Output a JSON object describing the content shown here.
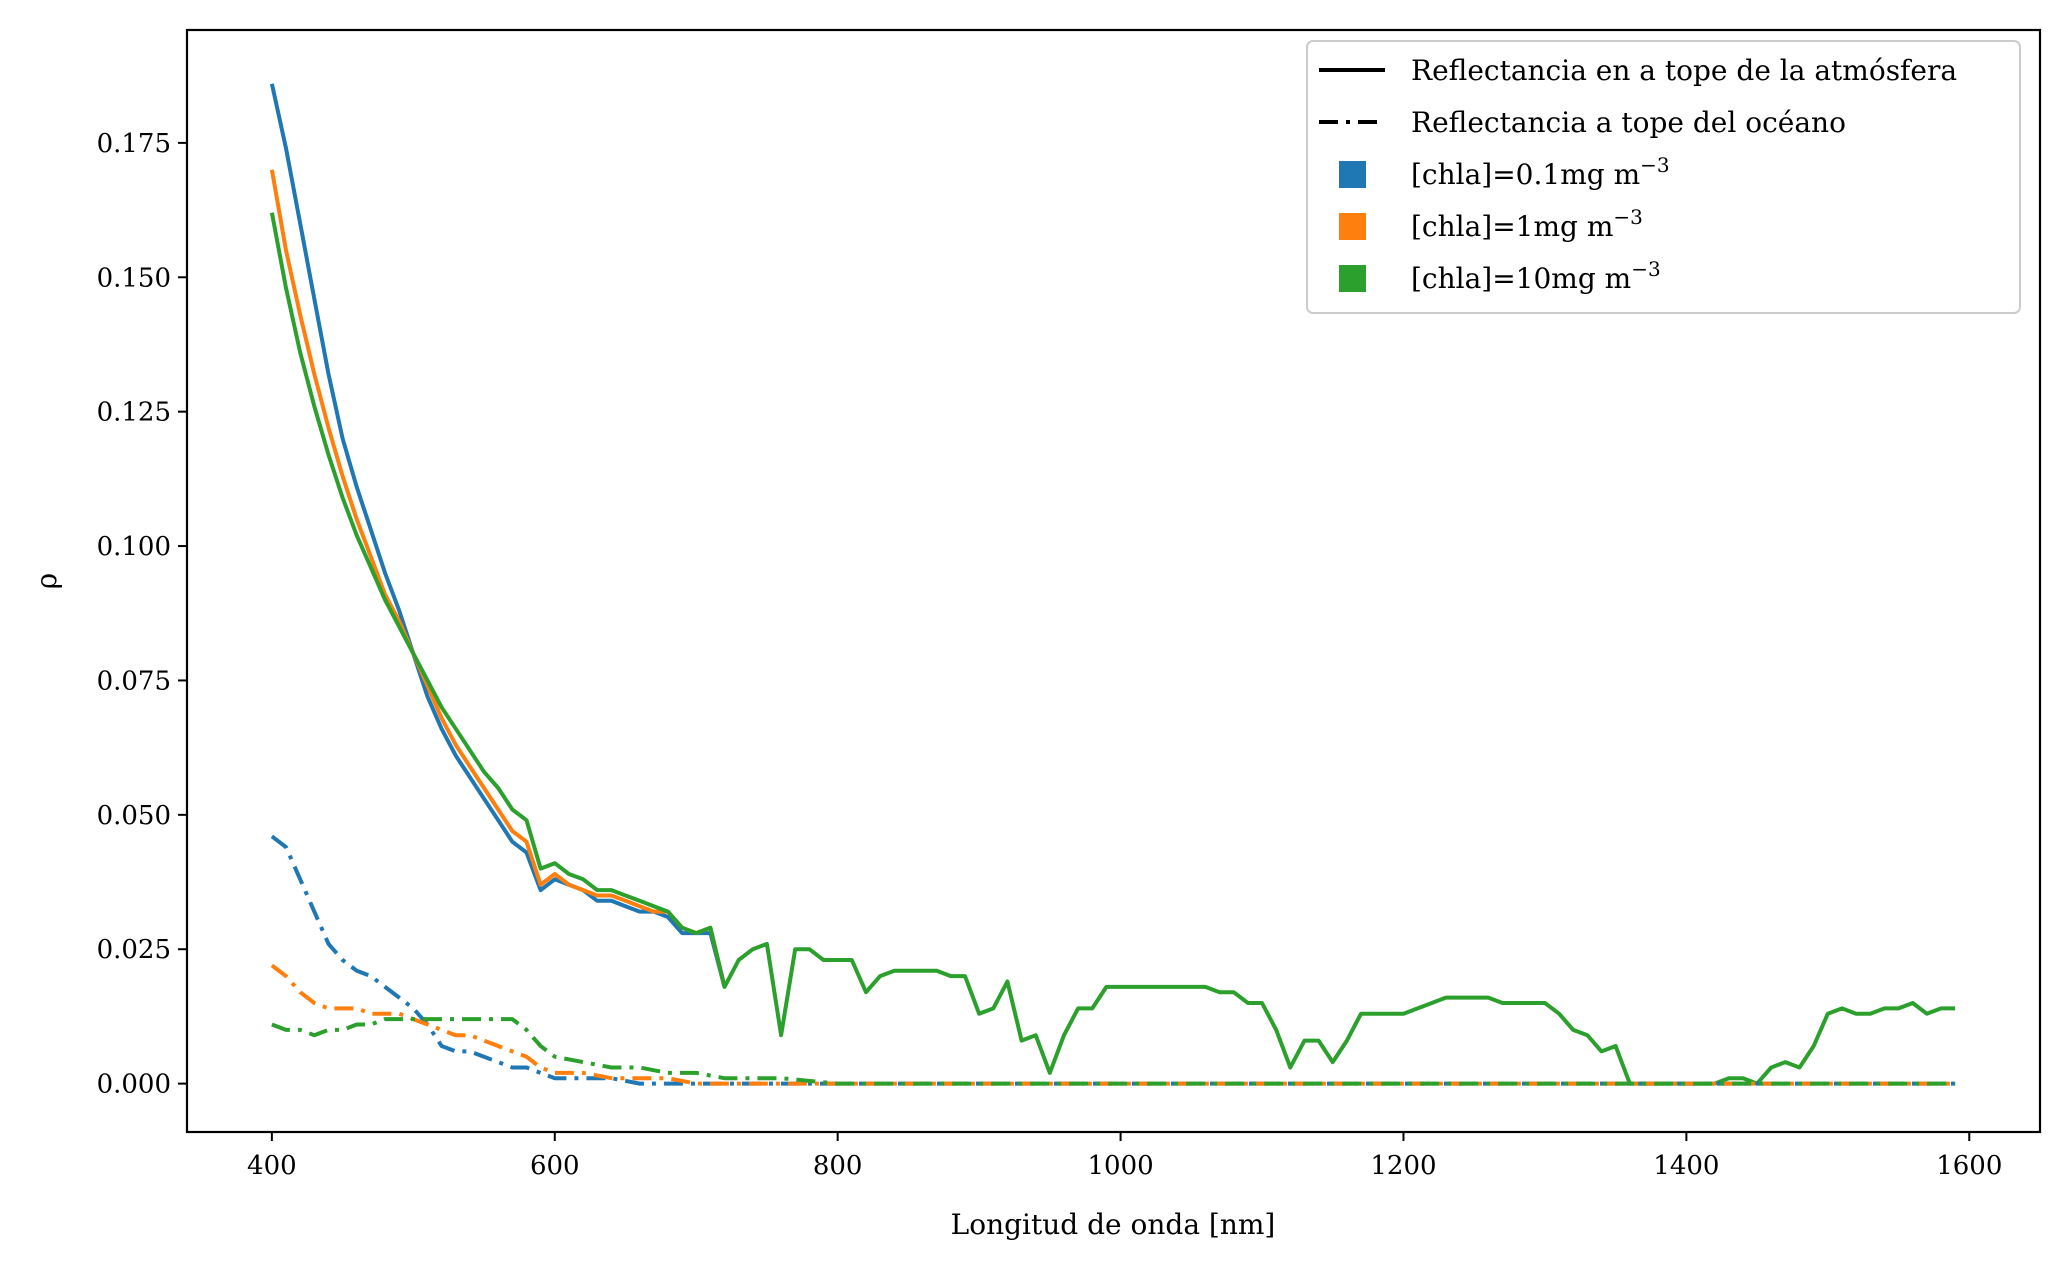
{
  "chart_data": {
    "type": "line",
    "xlabel": "Longitud de onda [nm]",
    "ylabel": "ρ",
    "xlim": [
      340,
      1650
    ],
    "ylim": [
      -0.009,
      0.196
    ],
    "xticks": [
      400,
      600,
      800,
      1000,
      1200,
      1400,
      1600
    ],
    "xtick_labels": [
      "400",
      "600",
      "800",
      "1000",
      "1200",
      "1400",
      "1600"
    ],
    "yticks": [
      0.0,
      0.025,
      0.05,
      0.075,
      0.1,
      0.125,
      0.15,
      0.175
    ],
    "ytick_labels": [
      "0.000",
      "0.025",
      "0.050",
      "0.075",
      "0.100",
      "0.125",
      "0.150",
      "0.175"
    ],
    "grid": false,
    "legend_position": "top-right",
    "legend": {
      "linestyles": [
        {
          "style": "solid",
          "label": "Reflectancia en a tope de la atmósfera"
        },
        {
          "style": "dashdot",
          "label": "Reflectancia a tope del océano"
        }
      ],
      "colors": [
        {
          "color": "#1f77b4",
          "label": "[chla]=0.1mg m",
          "sup": "−3"
        },
        {
          "color": "#ff7f0e",
          "label": "[chla]=1mg m",
          "sup": "−3"
        },
        {
          "color": "#2ca02c",
          "label": "[chla]=10mg m",
          "sup": "−3"
        }
      ]
    },
    "series": [
      {
        "color": "#1f77b4",
        "style": "solid",
        "x": [
          400,
          410,
          420,
          430,
          440,
          450,
          460,
          470,
          480,
          490,
          500,
          510,
          520,
          530,
          540,
          550,
          560,
          570,
          580,
          590,
          600,
          610,
          620,
          630,
          640,
          650,
          660,
          670,
          680,
          690,
          700,
          710,
          720
        ],
        "y": [
          0.186,
          0.174,
          0.16,
          0.146,
          0.132,
          0.12,
          0.111,
          0.103,
          0.095,
          0.088,
          0.08,
          0.072,
          0.066,
          0.061,
          0.057,
          0.053,
          0.049,
          0.045,
          0.043,
          0.036,
          0.038,
          0.037,
          0.036,
          0.034,
          0.034,
          0.033,
          0.032,
          0.032,
          0.031,
          0.028,
          0.028,
          0.028,
          0.018
        ]
      },
      {
        "color": "#ff7f0e",
        "style": "solid",
        "x": [
          400,
          410,
          420,
          430,
          440,
          450,
          460,
          470,
          480,
          490,
          500,
          510,
          520,
          530,
          540,
          550,
          560,
          570,
          580,
          590,
          600,
          610,
          620,
          630,
          640,
          650,
          660,
          670,
          680,
          690,
          700,
          710,
          720
        ],
        "y": [
          0.17,
          0.155,
          0.143,
          0.132,
          0.122,
          0.113,
          0.105,
          0.098,
          0.091,
          0.086,
          0.08,
          0.074,
          0.068,
          0.063,
          0.059,
          0.055,
          0.051,
          0.047,
          0.045,
          0.037,
          0.039,
          0.037,
          0.036,
          0.035,
          0.035,
          0.034,
          0.033,
          0.032,
          0.032,
          0.029,
          0.028,
          0.029,
          0.018
        ]
      },
      {
        "color": "#2ca02c",
        "style": "solid",
        "x": [
          400,
          410,
          420,
          430,
          440,
          450,
          460,
          470,
          480,
          490,
          500,
          510,
          520,
          530,
          540,
          550,
          560,
          570,
          580,
          590,
          600,
          610,
          620,
          630,
          640,
          650,
          660,
          670,
          680,
          690,
          700,
          710,
          720,
          730,
          740,
          750,
          760,
          770,
          780,
          790,
          800,
          810,
          820,
          830,
          840,
          850,
          860,
          870,
          880,
          890,
          900,
          910,
          920,
          930,
          940,
          950,
          960,
          970,
          980,
          990,
          1000,
          1010,
          1020,
          1030,
          1040,
          1050,
          1060,
          1070,
          1080,
          1090,
          1100,
          1110,
          1120,
          1130,
          1140,
          1150,
          1160,
          1170,
          1180,
          1190,
          1200,
          1210,
          1220,
          1230,
          1240,
          1250,
          1260,
          1270,
          1280,
          1290,
          1300,
          1310,
          1320,
          1330,
          1340,
          1350,
          1360,
          1370,
          1380,
          1390,
          1400,
          1410,
          1420,
          1430,
          1440,
          1450,
          1460,
          1470,
          1480,
          1490,
          1500,
          1510,
          1520,
          1530,
          1540,
          1550,
          1560,
          1570,
          1580,
          1590
        ],
        "y": [
          0.162,
          0.148,
          0.136,
          0.126,
          0.117,
          0.109,
          0.102,
          0.096,
          0.09,
          0.085,
          0.08,
          0.075,
          0.07,
          0.066,
          0.062,
          0.058,
          0.055,
          0.051,
          0.049,
          0.04,
          0.041,
          0.039,
          0.038,
          0.036,
          0.036,
          0.035,
          0.034,
          0.033,
          0.032,
          0.029,
          0.028,
          0.029,
          0.018,
          0.023,
          0.025,
          0.026,
          0.009,
          0.025,
          0.025,
          0.023,
          0.023,
          0.023,
          0.017,
          0.02,
          0.021,
          0.021,
          0.021,
          0.021,
          0.02,
          0.02,
          0.013,
          0.014,
          0.019,
          0.008,
          0.009,
          0.002,
          0.009,
          0.014,
          0.014,
          0.018,
          0.018,
          0.018,
          0.018,
          0.018,
          0.018,
          0.018,
          0.018,
          0.017,
          0.017,
          0.015,
          0.015,
          0.01,
          0.003,
          0.008,
          0.008,
          0.004,
          0.008,
          0.013,
          0.013,
          0.013,
          0.013,
          0.014,
          0.015,
          0.016,
          0.016,
          0.016,
          0.016,
          0.015,
          0.015,
          0.015,
          0.015,
          0.013,
          0.01,
          0.009,
          0.006,
          0.007,
          0.0,
          0.0,
          0.0,
          0.0,
          0.0,
          0.0,
          0.0,
          0.001,
          0.001,
          0.0,
          0.003,
          0.004,
          0.003,
          0.007,
          0.013,
          0.014,
          0.013,
          0.013,
          0.014,
          0.014,
          0.015,
          0.013,
          0.014,
          0.014
        ]
      },
      {
        "color": "#1f77b4",
        "style": "dashdot",
        "x": [
          400,
          410,
          420,
          430,
          440,
          450,
          460,
          470,
          480,
          490,
          500,
          510,
          520,
          530,
          540,
          550,
          560,
          570,
          580,
          590,
          600,
          620,
          640,
          660,
          680,
          700,
          720,
          740,
          760,
          800,
          900,
          1000,
          1100,
          1200,
          1300,
          1400,
          1500,
          1590
        ],
        "y": [
          0.046,
          0.044,
          0.038,
          0.032,
          0.026,
          0.023,
          0.021,
          0.02,
          0.018,
          0.016,
          0.014,
          0.011,
          0.007,
          0.006,
          0.006,
          0.005,
          0.004,
          0.003,
          0.003,
          0.002,
          0.001,
          0.001,
          0.001,
          0.0,
          0.0,
          0.0,
          0.0,
          0.0,
          0.0,
          0.0,
          0.0,
          0.0,
          0.0,
          0.0,
          0.0,
          0.0,
          0.0,
          0.0
        ]
      },
      {
        "color": "#ff7f0e",
        "style": "dashdot",
        "x": [
          400,
          410,
          420,
          430,
          440,
          450,
          460,
          470,
          480,
          490,
          500,
          510,
          520,
          530,
          540,
          550,
          560,
          570,
          580,
          590,
          600,
          620,
          640,
          660,
          680,
          700,
          720,
          740,
          760,
          800,
          900,
          1000,
          1100,
          1200,
          1300,
          1400,
          1500,
          1590
        ],
        "y": [
          0.022,
          0.02,
          0.017,
          0.015,
          0.014,
          0.014,
          0.014,
          0.013,
          0.013,
          0.013,
          0.012,
          0.011,
          0.01,
          0.009,
          0.009,
          0.008,
          0.007,
          0.006,
          0.005,
          0.003,
          0.002,
          0.002,
          0.001,
          0.001,
          0.001,
          0.0,
          0.0,
          0.0,
          0.0,
          0.0,
          0.0,
          0.0,
          0.0,
          0.0,
          0.0,
          0.0,
          0.0,
          0.0
        ]
      },
      {
        "color": "#2ca02c",
        "style": "dashdot",
        "x": [
          400,
          410,
          420,
          430,
          440,
          450,
          460,
          470,
          480,
          490,
          500,
          510,
          520,
          530,
          540,
          550,
          560,
          570,
          580,
          590,
          600,
          620,
          640,
          660,
          680,
          700,
          720,
          740,
          760,
          800,
          900,
          1000,
          1100,
          1200,
          1300,
          1400,
          1500,
          1590
        ],
        "y": [
          0.011,
          0.01,
          0.01,
          0.009,
          0.01,
          0.01,
          0.011,
          0.011,
          0.012,
          0.012,
          0.012,
          0.012,
          0.012,
          0.012,
          0.012,
          0.012,
          0.012,
          0.012,
          0.01,
          0.007,
          0.005,
          0.004,
          0.003,
          0.003,
          0.002,
          0.002,
          0.001,
          0.001,
          0.001,
          0.0,
          0.0,
          0.0,
          0.0,
          0.0,
          0.0,
          0.0,
          0.0,
          0.0
        ]
      }
    ]
  }
}
